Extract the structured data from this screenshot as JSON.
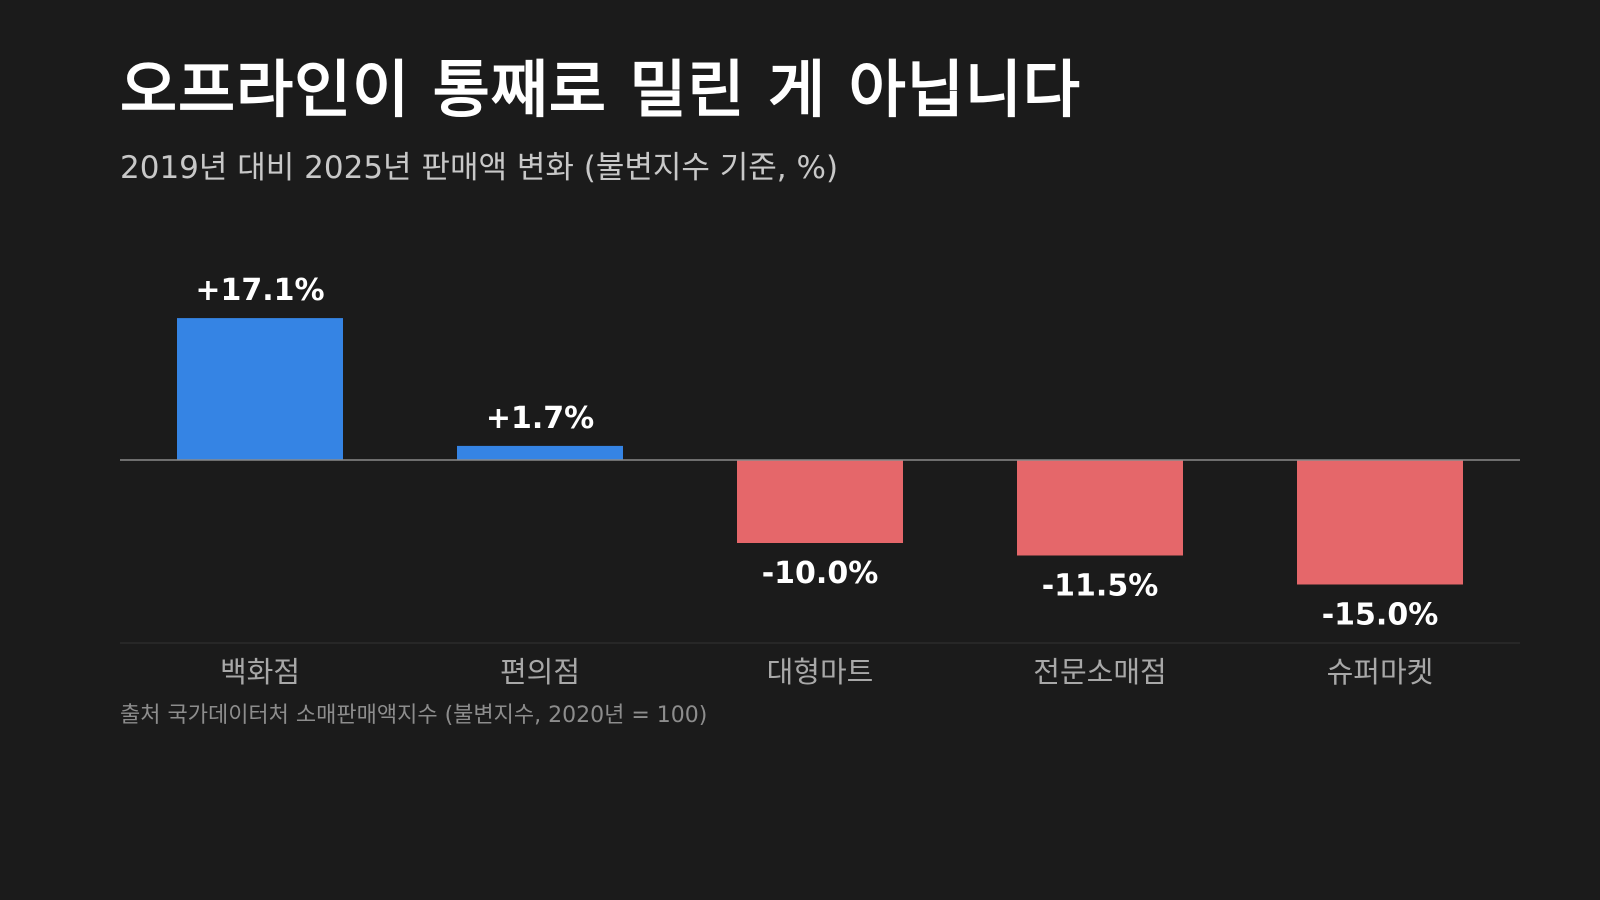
{
  "title": "오프라인이 통째로 밀린 게 아닙니다",
  "subtitle": "2019년 대비 2025년 판매액 변화 (불변지수 기준, %)",
  "source": "출처 국가데이터처 소매판매액지수 (불변지수, 2020년 = 100)",
  "colors": {
    "background": "#1b1b1b",
    "positive": "#3584e4",
    "negative": "#e5676a",
    "baseline": "#8a8a8a",
    "value_label": "#ffffff",
    "category_label": "#a8a8a8"
  },
  "chart_data": {
    "type": "bar",
    "categories": [
      "백화점",
      "편의점",
      "대형마트",
      "전문소매점",
      "슈퍼마켓"
    ],
    "values": [
      17.1,
      1.7,
      -10.0,
      -11.5,
      -15.0
    ],
    "value_labels": [
      "+17.1%",
      "+1.7%",
      "-10.0%",
      "-11.5%",
      "-15.0%"
    ],
    "title": "오프라인이 통째로 밀린 게 아닙니다",
    "subtitle": "2019년 대비 2025년 판매액 변화 (불변지수 기준, %)",
    "xlabel": "",
    "ylabel": "",
    "ylim": [
      -15.0,
      17.1
    ],
    "grid": false,
    "legend": "none"
  }
}
